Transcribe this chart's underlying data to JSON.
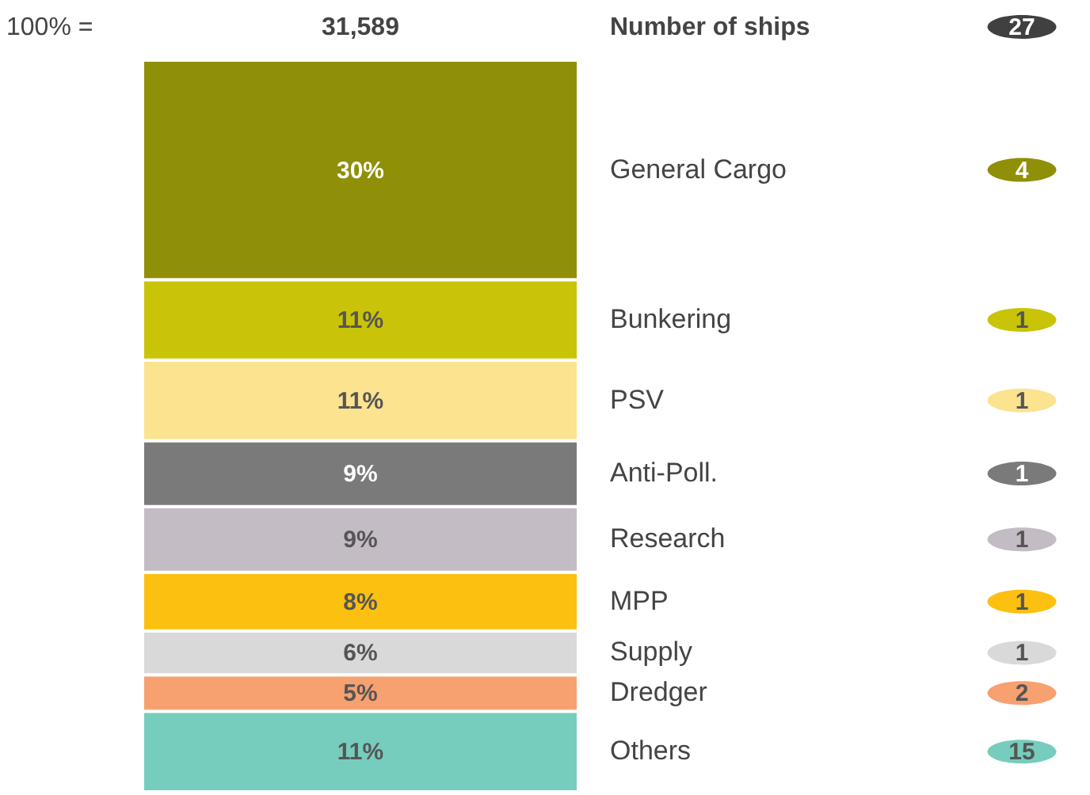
{
  "chart_data": {
    "type": "bar",
    "stacked": true,
    "categories": [
      null
    ],
    "ylim": [
      0,
      100
    ],
    "series": [
      {
        "name": "Others",
        "color": "#76cdbd",
        "values": [
          11
        ],
        "value_labels": [
          "11%"
        ]
      },
      {
        "name": "Dredger",
        "color": "#f7a070",
        "values": [
          5
        ],
        "value_labels": [
          "5%"
        ]
      },
      {
        "name": "Supply",
        "color": "#d9d9d9",
        "values": [
          6
        ],
        "value_labels": [
          "6%"
        ]
      },
      {
        "name": "MPP",
        "color": "#fcc010",
        "values": [
          8
        ],
        "value_labels": [
          "8%"
        ]
      },
      {
        "name": "Research",
        "color": "#c4bcc4",
        "values": [
          9
        ],
        "value_labels": [
          "9%"
        ]
      },
      {
        "name": "Anti-Poll.",
        "color": "#7a7a7a",
        "values": [
          9
        ],
        "value_labels": [
          "9%"
        ]
      },
      {
        "name": "PSV",
        "color": "#fbe38f",
        "values": [
          11
        ],
        "value_labels": [
          "11%"
        ]
      },
      {
        "name": "Bunkering",
        "color": "#c9c408",
        "values": [
          11
        ],
        "value_labels": [
          "11%"
        ]
      },
      {
        "name": "General Cargo",
        "color": "#908f08",
        "values": [
          30
        ],
        "value_labels": [
          "30%"
        ]
      }
    ],
    "annotations": [
      "100% =",
      "31,589",
      "Number of ships",
      "27",
      "4",
      "1",
      "1",
      "1",
      "1",
      "1",
      "1",
      "2",
      "15"
    ]
  }
}
